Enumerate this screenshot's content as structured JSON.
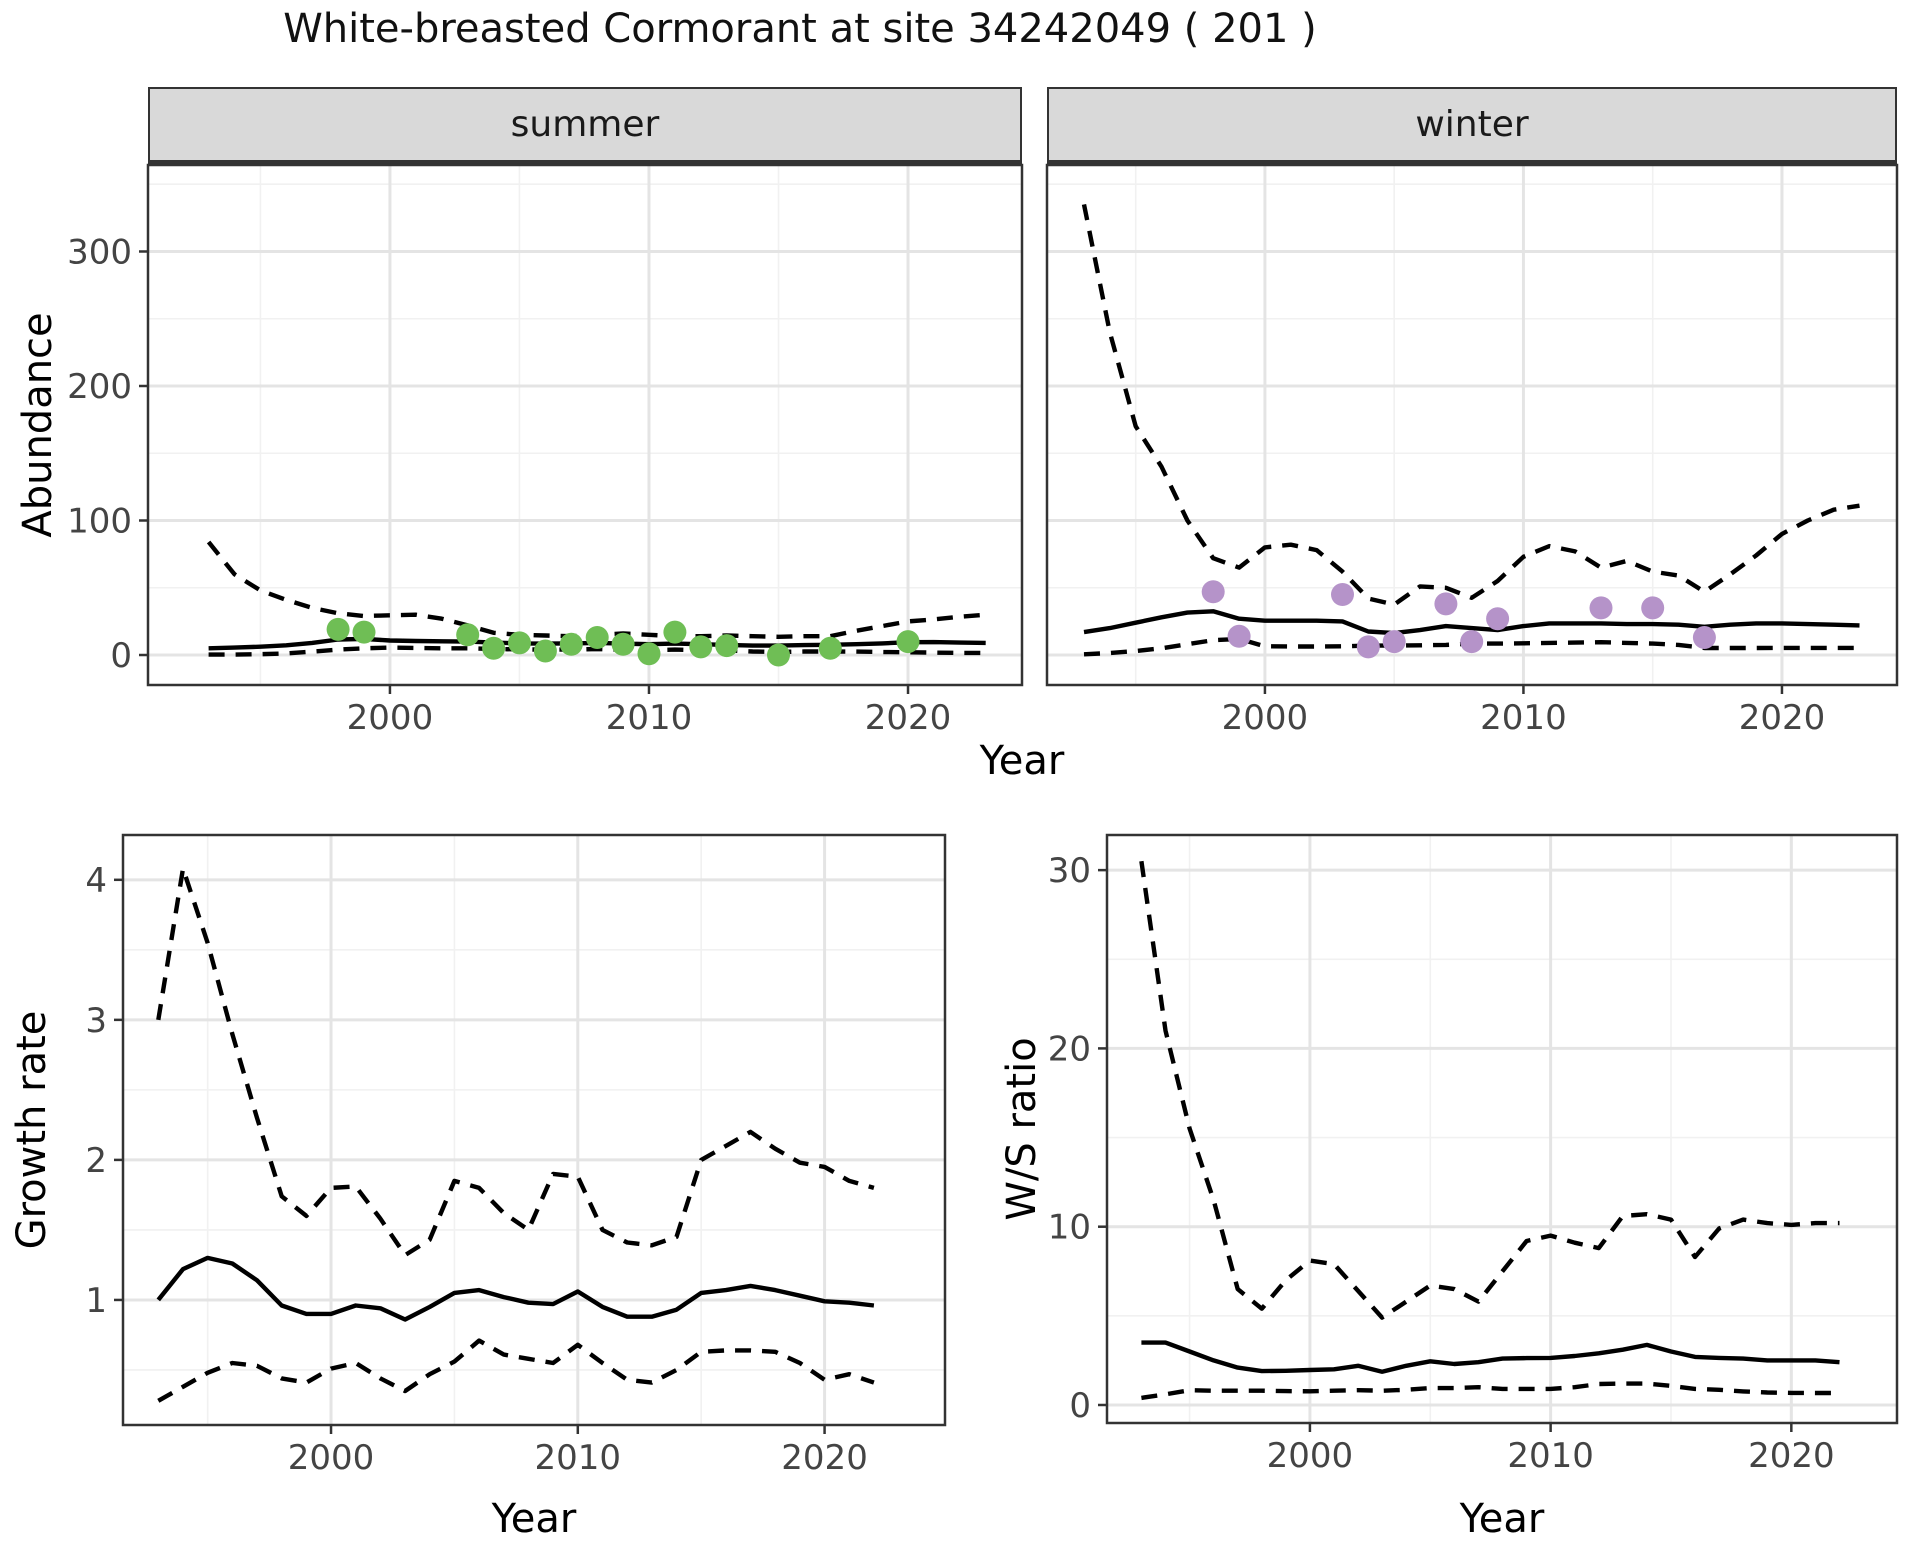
{
  "title": "White-breasted Cormorant at site 34242049 ( 201 )",
  "facets": {
    "summer": "summer",
    "winter": "winter"
  },
  "axis_labels": {
    "abundance": "Abundance",
    "growth_rate": "Growth rate",
    "ws_ratio": "W/S ratio",
    "year": "Year"
  },
  "colors": {
    "summer_points": "#6FBE55",
    "winter_points": "#B593C9",
    "line": "#000000",
    "strip_bg": "#D9D9D9",
    "grid_major": "#E4E4E4",
    "grid_minor": "#F1F1F1",
    "panel_border": "#333333",
    "tick_text": "#444444"
  },
  "chart_data": [
    {
      "id": "abundance-summer",
      "type": "line",
      "facet_label": "summer",
      "ylabel": "Abundance",
      "xlabel": "Year",
      "xlim": [
        1990.66,
        2024.4
      ],
      "ylim": [
        -22.3,
        364.3
      ],
      "xticks": [
        2000,
        2010,
        2020
      ],
      "yticks": [
        0,
        100,
        200,
        300
      ],
      "grid": true,
      "legend": "none",
      "years": [
        1993,
        1994,
        1995,
        1996,
        1997,
        1998,
        1999,
        2000,
        2001,
        2002,
        2003,
        2004,
        2005,
        2006,
        2007,
        2008,
        2009,
        2010,
        2011,
        2012,
        2013,
        2014,
        2015,
        2016,
        2017,
        2018,
        2019,
        2020,
        2021,
        2022,
        2023
      ],
      "series": [
        {
          "name": "median",
          "style": "solid",
          "values": [
            5,
            5.5,
            6.2,
            7.2,
            9,
            11.5,
            12,
            10.8,
            10.4,
            10.2,
            10,
            9.2,
            8.6,
            8.5,
            8.6,
            9,
            8.5,
            8,
            8.5,
            8,
            7.5,
            7,
            7,
            7.4,
            7.6,
            8,
            8.6,
            9.5,
            9.6,
            9.2,
            9
          ]
        },
        {
          "name": "upper-ci",
          "style": "dashed",
          "values": [
            84,
            60,
            48,
            41,
            35,
            31,
            29,
            29.5,
            30,
            27,
            22,
            16.5,
            15,
            14.5,
            14,
            15,
            16,
            15,
            14,
            14,
            14.5,
            14,
            13.5,
            14,
            14,
            18,
            21.5,
            25,
            26.5,
            28.5,
            30
          ]
        },
        {
          "name": "lower-ci",
          "style": "dashed",
          "values": [
            0.3,
            0.3,
            0.6,
            1.2,
            2.5,
            4,
            5,
            5.5,
            5.2,
            5,
            5,
            4.5,
            4.2,
            4,
            4,
            4.5,
            4,
            3.6,
            4,
            3.6,
            3.4,
            2.6,
            2.2,
            2.6,
            2.6,
            2.5,
            2.2,
            2,
            1.8,
            1.6,
            1.5
          ]
        }
      ],
      "points": {
        "color": "#6FBE55",
        "years": [
          1998,
          1999,
          2003,
          2004,
          2005,
          2006,
          2007,
          2008,
          2009,
          2010,
          2011,
          2012,
          2013,
          2015,
          2017,
          2020
        ],
        "values": [
          19,
          17,
          15,
          5,
          9,
          3,
          8,
          13,
          8,
          1,
          17,
          6,
          7,
          0,
          5,
          10
        ]
      }
    },
    {
      "id": "abundance-winter",
      "type": "line",
      "facet_label": "winter",
      "ylabel": "Abundance",
      "xlabel": "Year",
      "xlim": [
        1991.57,
        2024.45
      ],
      "ylim": [
        -22.3,
        364.3
      ],
      "xticks": [
        2000,
        2010,
        2020
      ],
      "yticks": [
        0,
        100,
        200,
        300
      ],
      "grid": true,
      "legend": "none",
      "years": [
        1993,
        1994,
        1995,
        1996,
        1997,
        1998,
        1999,
        2000,
        2001,
        2002,
        2003,
        2004,
        2005,
        2006,
        2007,
        2008,
        2009,
        2010,
        2011,
        2012,
        2013,
        2014,
        2015,
        2016,
        2017,
        2018,
        2019,
        2020,
        2021,
        2022,
        2023
      ],
      "series": [
        {
          "name": "median",
          "style": "solid",
          "values": [
            17,
            20,
            24,
            28,
            31.5,
            32.5,
            27,
            25.5,
            25.5,
            25.5,
            25,
            17.5,
            16.3,
            18.5,
            21.5,
            20,
            18.5,
            21.5,
            23.5,
            23.5,
            23.5,
            23,
            23,
            22.5,
            21,
            22.5,
            23.5,
            23.5,
            23,
            22.5,
            22
          ]
        },
        {
          "name": "upper-ci",
          "style": "dashed",
          "values": [
            335,
            240,
            170,
            140,
            100,
            72,
            65,
            80,
            82,
            78,
            62,
            42,
            37.5,
            51,
            50,
            42.5,
            55,
            73,
            81,
            77,
            65,
            70,
            62,
            59,
            47,
            60,
            74,
            90,
            100,
            108,
            111
          ]
        },
        {
          "name": "lower-ci",
          "style": "dashed",
          "values": [
            0.5,
            1.5,
            3,
            5,
            8,
            11,
            12,
            6.5,
            6.3,
            6.3,
            6.5,
            7,
            7,
            7.2,
            7.5,
            8.5,
            8.5,
            8.7,
            9,
            9.2,
            9.5,
            9,
            8.5,
            7.5,
            5.2,
            5.2,
            5.2,
            5.3,
            5.3,
            5.3,
            5.3
          ]
        }
      ],
      "points": {
        "color": "#B593C9",
        "years": [
          1998,
          1999,
          2003,
          2004,
          2005,
          2007,
          2008,
          2009,
          2013,
          2015,
          2017
        ],
        "values": [
          47,
          14,
          45,
          6,
          10,
          38,
          10,
          27,
          35,
          35,
          13
        ]
      }
    },
    {
      "id": "growth-rate",
      "type": "line",
      "facet_label": "",
      "ylabel": "Growth rate",
      "xlabel": "Year",
      "xlim": [
        1991.57,
        2024.88
      ],
      "ylim": [
        0.107,
        4.32
      ],
      "xticks": [
        2000,
        2010,
        2020
      ],
      "yticks": [
        1,
        2,
        3,
        4
      ],
      "grid": true,
      "legend": "none",
      "years": [
        1993,
        1994,
        1995,
        1996,
        1997,
        1998,
        1999,
        2000,
        2001,
        2002,
        2003,
        2004,
        2005,
        2006,
        2007,
        2008,
        2009,
        2010,
        2011,
        2012,
        2013,
        2014,
        2015,
        2016,
        2017,
        2018,
        2019,
        2020,
        2021,
        2022
      ],
      "series": [
        {
          "name": "median",
          "style": "solid",
          "values": [
            1.0,
            1.22,
            1.3,
            1.26,
            1.14,
            0.96,
            0.9,
            0.9,
            0.96,
            0.94,
            0.86,
            0.95,
            1.05,
            1.07,
            1.02,
            0.98,
            0.97,
            1.06,
            0.95,
            0.88,
            0.88,
            0.93,
            1.05,
            1.07,
            1.1,
            1.07,
            1.03,
            0.99,
            0.98,
            0.96
          ]
        },
        {
          "name": "upper-ci",
          "style": "dashed",
          "values": [
            3.0,
            4.08,
            3.55,
            2.9,
            2.3,
            1.74,
            1.6,
            1.8,
            1.81,
            1.58,
            1.32,
            1.43,
            1.85,
            1.8,
            1.62,
            1.5,
            1.9,
            1.88,
            1.5,
            1.41,
            1.39,
            1.45,
            2.0,
            2.1,
            2.2,
            2.08,
            1.98,
            1.95,
            1.85,
            1.8
          ]
        },
        {
          "name": "lower-ci",
          "style": "dashed",
          "values": [
            0.28,
            0.38,
            0.48,
            0.55,
            0.53,
            0.44,
            0.41,
            0.51,
            0.55,
            0.44,
            0.35,
            0.47,
            0.56,
            0.71,
            0.61,
            0.58,
            0.55,
            0.68,
            0.55,
            0.43,
            0.41,
            0.5,
            0.63,
            0.64,
            0.64,
            0.63,
            0.55,
            0.43,
            0.47,
            0.41
          ]
        }
      ],
      "points": {
        "color": "#000000",
        "years": [],
        "values": []
      }
    },
    {
      "id": "ws-ratio",
      "type": "line",
      "facet_label": "",
      "ylabel": "W/S ratio",
      "xlabel": "Year",
      "xlim": [
        1991.57,
        2024.39
      ],
      "ylim": [
        -1.01,
        31.97
      ],
      "xticks": [
        2000,
        2010,
        2020
      ],
      "yticks": [
        0,
        10,
        20,
        30
      ],
      "grid": true,
      "legend": "none",
      "years": [
        1993,
        1994,
        1995,
        1996,
        1997,
        1998,
        1999,
        2000,
        2001,
        2002,
        2003,
        2004,
        2005,
        2006,
        2007,
        2008,
        2009,
        2010,
        2011,
        2012,
        2013,
        2014,
        2015,
        2016,
        2017,
        2018,
        2019,
        2020,
        2021,
        2022
      ],
      "series": [
        {
          "name": "median",
          "style": "solid",
          "values": [
            3.5,
            3.5,
            3.0,
            2.5,
            2.1,
            1.9,
            1.92,
            1.96,
            2.0,
            2.2,
            1.87,
            2.2,
            2.45,
            2.3,
            2.4,
            2.6,
            2.63,
            2.64,
            2.75,
            2.9,
            3.1,
            3.37,
            3.0,
            2.7,
            2.64,
            2.6,
            2.5,
            2.5,
            2.5,
            2.4
          ]
        },
        {
          "name": "upper-ci",
          "style": "dashed",
          "values": [
            30.5,
            21,
            15.5,
            11.5,
            6.5,
            5.4,
            7.0,
            8.1,
            7.9,
            6.4,
            4.9,
            5.8,
            6.7,
            6.5,
            5.8,
            7.5,
            9.2,
            9.5,
            9.1,
            8.8,
            10.6,
            10.7,
            10.4,
            8.3,
            9.9,
            10.4,
            10.2,
            10.1,
            10.2,
            10.2
          ]
        },
        {
          "name": "lower-ci",
          "style": "dashed",
          "values": [
            0.4,
            0.6,
            0.83,
            0.8,
            0.8,
            0.8,
            0.78,
            0.77,
            0.8,
            0.83,
            0.8,
            0.85,
            0.95,
            0.95,
            1.0,
            0.9,
            0.9,
            0.9,
            1.0,
            1.18,
            1.2,
            1.2,
            1.07,
            0.9,
            0.85,
            0.76,
            0.7,
            0.68,
            0.67,
            0.67
          ]
        }
      ],
      "points": {
        "color": "#000000",
        "years": [],
        "values": []
      }
    }
  ]
}
